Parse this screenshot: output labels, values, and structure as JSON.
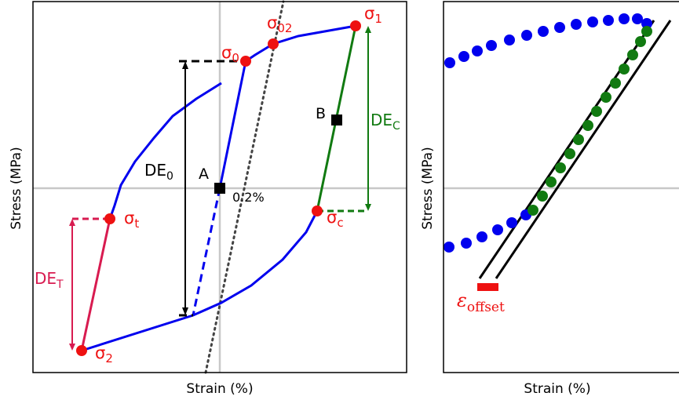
{
  "colors": {
    "blue": "#0000ee",
    "red": "#ee1111",
    "crimson": "#d81b50",
    "green": "#117a11",
    "black": "#000000",
    "grid": "#c8c8c8"
  },
  "left_panel": {
    "xlabel": "Strain (%)",
    "ylabel": "Stress (MPa)",
    "labels": {
      "sigma0": {
        "base": "σ",
        "sub": "0"
      },
      "sigma02": {
        "base": "σ",
        "sub": "02"
      },
      "sigma1": {
        "base": "σ",
        "sub": "1"
      },
      "sigma2": {
        "base": "σ",
        "sub": "2"
      },
      "sigmat": {
        "base": "σ",
        "sub": "t"
      },
      "sigmac": {
        "base": "σ",
        "sub": "c"
      },
      "de0": {
        "base": "DE",
        "sub": "0"
      },
      "dec": {
        "base": "DE",
        "sub": "C"
      },
      "det": {
        "base": "DE",
        "sub": "T"
      },
      "point_a": "A",
      "point_b": "B",
      "offset_pct": "0.2%"
    }
  },
  "right_panel": {
    "xlabel": "Strain (%)",
    "ylabel": "Stress (MPa)",
    "offset_label": {
      "base": "ε",
      "sub": "offset"
    }
  }
}
